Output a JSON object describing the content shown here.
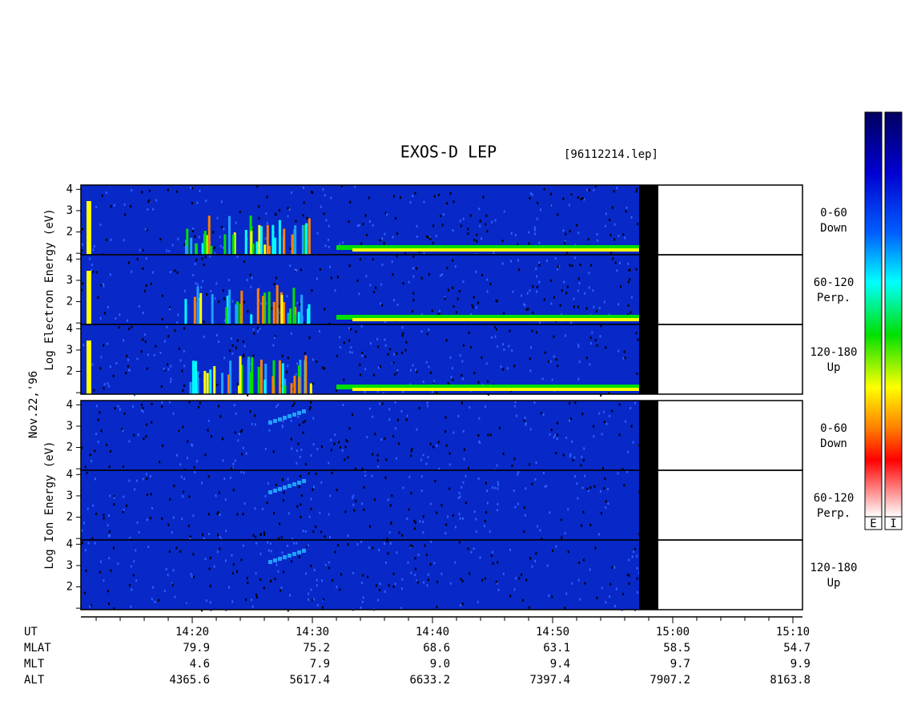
{
  "chart_data": {
    "type": "spectrogram",
    "title": "EXOS-D LEP",
    "file": "[96112214.lep]",
    "date": "Nov.22,'96",
    "xlim": [
      10.73,
      70.8
    ],
    "xticks": [
      {
        "value": 20,
        "label": "14:20"
      },
      {
        "value": 30,
        "label": "14:30"
      },
      {
        "value": 40,
        "label": "14:40"
      },
      {
        "value": 50,
        "label": "14:50"
      },
      {
        "value": 60,
        "label": "15:00"
      },
      {
        "value": 70,
        "label": "15:10"
      }
    ],
    "xminorticks": [
      12,
      14,
      16,
      18,
      22,
      24,
      26,
      28,
      32,
      34,
      36,
      38,
      42,
      44,
      46,
      48,
      52,
      54,
      56,
      58,
      62,
      64,
      66,
      68
    ],
    "ylim": [
      0.93,
      4.2
    ],
    "yticks": [
      2,
      3,
      4
    ],
    "yminorticks": [
      1
    ],
    "groups": [
      {
        "ylabel": "Log Electron Energy (eV)",
        "panels": [
          [
            "0-60",
            "Down"
          ],
          [
            "60-120",
            "Perp."
          ],
          [
            "120-180",
            "Up"
          ]
        ]
      },
      {
        "ylabel": "Log Ion Energy (eV)",
        "panels": [
          [
            "0-60",
            "Down"
          ],
          [
            "60-120",
            "Perp."
          ],
          [
            "120-180",
            "Up"
          ]
        ]
      }
    ],
    "rows": [
      {
        "name": "UT"
      },
      {
        "name": "MLAT",
        "values": [
          79.9,
          75.2,
          68.6,
          63.1,
          58.5,
          54.7
        ]
      },
      {
        "name": "MLT",
        "values": [
          4.6,
          7.9,
          {
            "value": 9,
            "label": "9.0"
          },
          9.4,
          9.7,
          9.9
        ]
      },
      {
        "name": "ALT",
        "values": [
          4365.6,
          5617.4,
          6633.2,
          7397.4,
          7907.2,
          8163.8
        ]
      }
    ],
    "colorbars": [
      "E",
      "I"
    ]
  }
}
